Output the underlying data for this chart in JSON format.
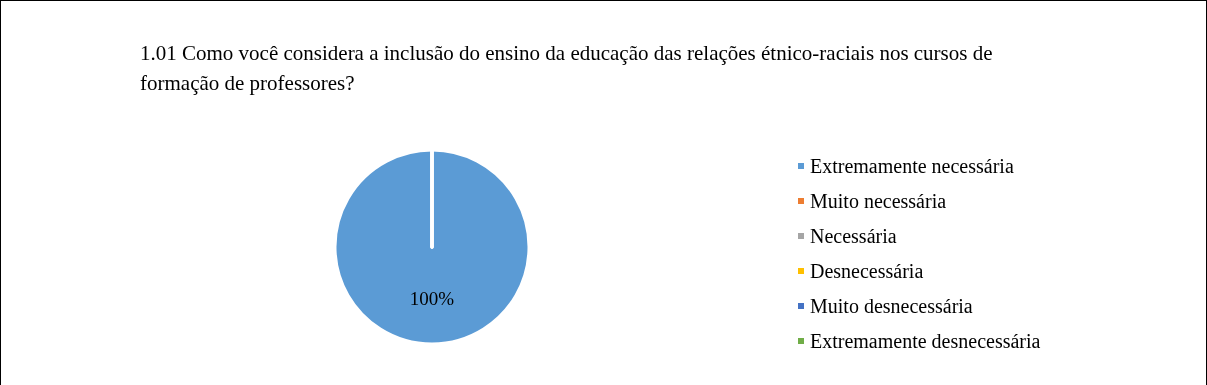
{
  "chart_data": {
    "type": "pie",
    "title": "1.01 Como você considera a inclusão do ensino da educação das relações étnico-raciais nos cursos de formação de professores?",
    "categories": [
      "Extremamente necessária",
      "Muito necessária",
      "Necessária",
      "Desnecessária",
      "Muito desnecessária",
      "Extremamente desnecessária"
    ],
    "values": [
      100,
      0,
      0,
      0,
      0,
      0
    ],
    "colors": [
      "#5b9bd5",
      "#ed7d31",
      "#a5a5a5",
      "#ffc000",
      "#4472c4",
      "#70ad47"
    ],
    "value_labels": [
      "100%",
      null,
      null,
      null,
      null,
      null
    ],
    "legend": "right"
  }
}
